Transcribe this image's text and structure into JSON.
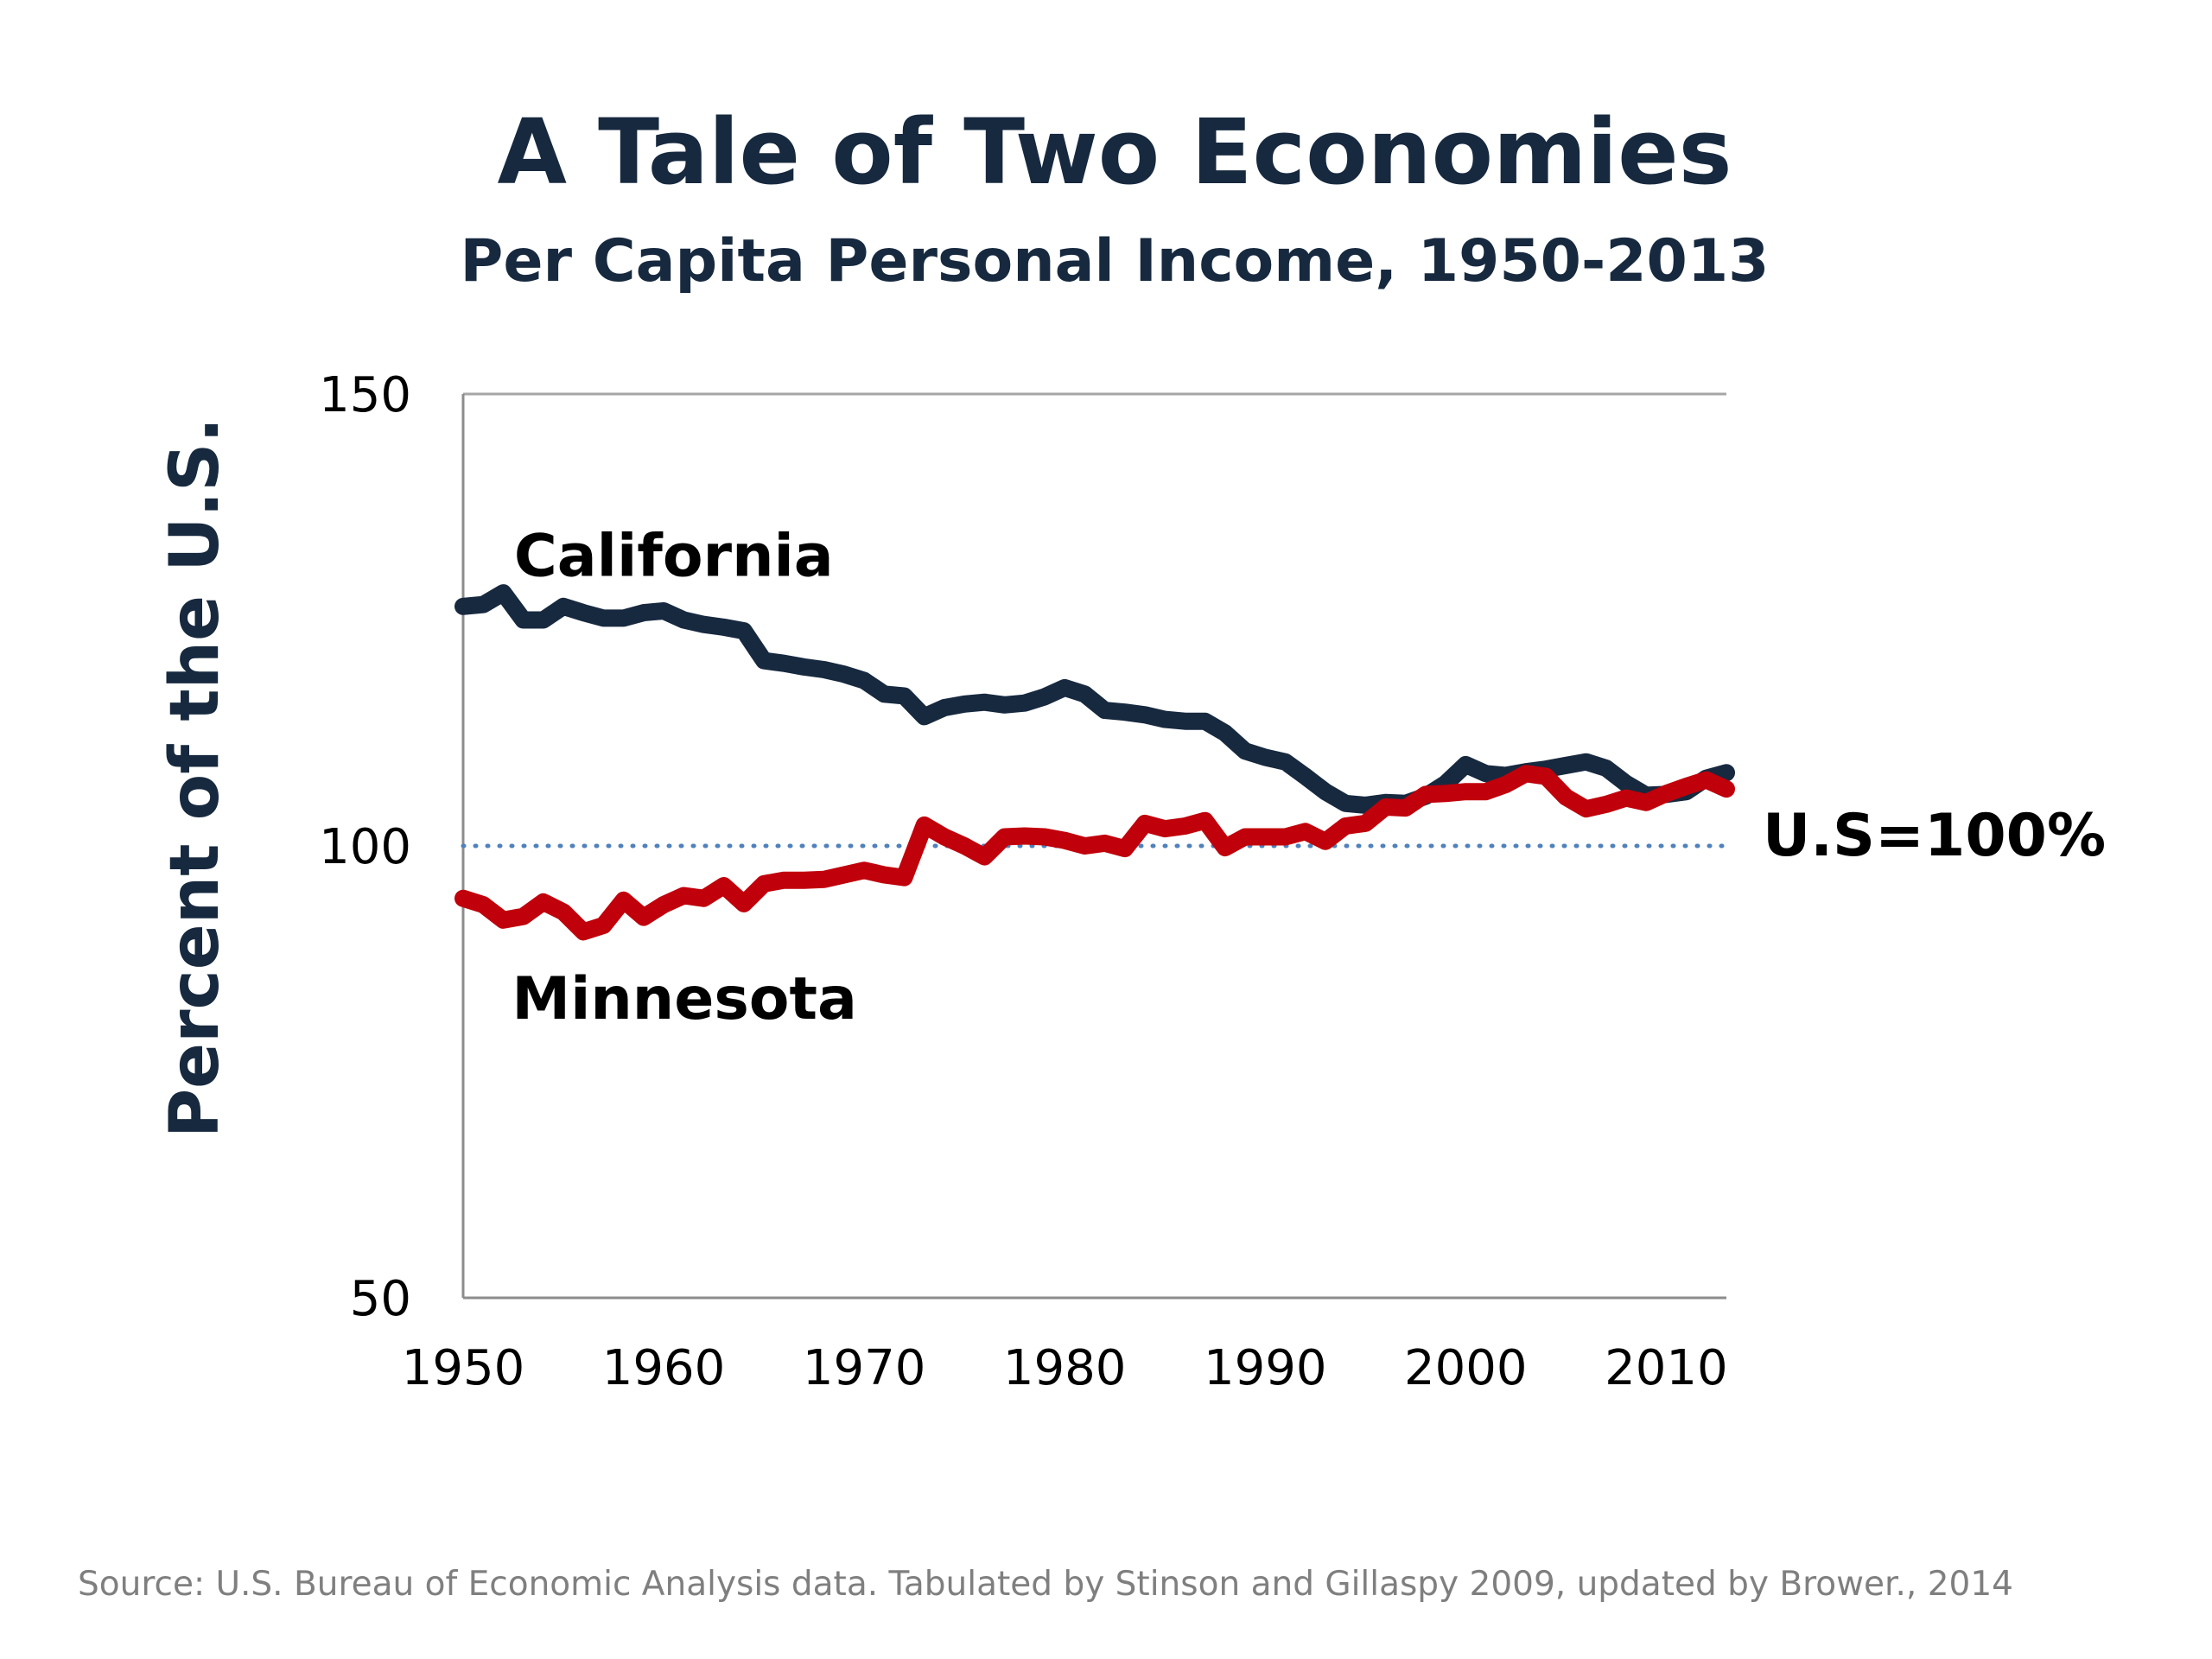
{
  "chart_data": {
    "type": "line",
    "title": "A Tale of Two Economies",
    "subtitle": "Per Capita Personal Income, 1950-2013",
    "ylabel": "Percent of the U.S.",
    "xlabel": "",
    "ylim": [
      50,
      150
    ],
    "xlim": [
      1950,
      2013
    ],
    "y_ticks": [
      "150",
      "100",
      "50"
    ],
    "y_tick_values": [
      150,
      100,
      50
    ],
    "x_ticks": [
      "1950",
      "1960",
      "1970",
      "1980",
      "1990",
      "2000",
      "2010"
    ],
    "x_tick_values": [
      1950,
      1960,
      1970,
      1980,
      1990,
      2000,
      2010
    ],
    "grid": {
      "horizontal_at": [
        150
      ],
      "style": "solid-light"
    },
    "reference_line": {
      "value": 100,
      "label": "U.S=100%",
      "style": "dotted",
      "color": "#4f81bd"
    },
    "x": [
      1950,
      1951,
      1952,
      1953,
      1954,
      1955,
      1956,
      1957,
      1958,
      1959,
      1960,
      1961,
      1962,
      1963,
      1964,
      1965,
      1966,
      1967,
      1968,
      1969,
      1970,
      1971,
      1972,
      1973,
      1974,
      1975,
      1976,
      1977,
      1978,
      1979,
      1980,
      1981,
      1982,
      1983,
      1984,
      1985,
      1986,
      1987,
      1988,
      1989,
      1990,
      1991,
      1992,
      1993,
      1994,
      1995,
      1996,
      1997,
      1998,
      1999,
      2000,
      2001,
      2002,
      2003,
      2004,
      2005,
      2006,
      2007,
      2008,
      2009,
      2010,
      2011,
      2012,
      2013
    ],
    "series": [
      {
        "name": "California",
        "color": "#17293f",
        "values": [
          126.5,
          126.7,
          128,
          125,
          125,
          126.5,
          125.8,
          125.2,
          125.2,
          125.8,
          126,
          125,
          124.5,
          124.2,
          123.8,
          120.5,
          120.2,
          119.8,
          119.5,
          119,
          118.3,
          116.8,
          116.6,
          114.3,
          115.3,
          115.7,
          115.9,
          115.6,
          115.8,
          116.5,
          117.5,
          116.8,
          115,
          114.8,
          114.5,
          114,
          113.8,
          113.8,
          112.5,
          110.5,
          109.8,
          109.3,
          107.7,
          106,
          104.7,
          104.5,
          104.8,
          104.7,
          105.5,
          106.9,
          109,
          108,
          107.8,
          108.2,
          108.5,
          108.9,
          109.3,
          108.6,
          106.9,
          105.6,
          105.7,
          106,
          107.5,
          108.1
        ],
        "label_position": "upper-left"
      },
      {
        "name": "Minnesota",
        "color": "#c0000b",
        "values": [
          94.2,
          93.5,
          91.8,
          92.2,
          93.8,
          92.7,
          90.5,
          91.2,
          94,
          92.1,
          93.5,
          94.5,
          94.2,
          95.6,
          93.6,
          95.8,
          96.2,
          96.2,
          96.3,
          96.8,
          97.3,
          96.8,
          96.5,
          102.3,
          101,
          100,
          98.8,
          101,
          101.1,
          101,
          100.6,
          100,
          100.3,
          99.7,
          102.5,
          101.9,
          102.2,
          102.8,
          99.8,
          101,
          101,
          101,
          101.6,
          100.5,
          102.2,
          102.5,
          104.3,
          104.2,
          105.7,
          105.8,
          106,
          106,
          106.8,
          108,
          107.7,
          105.4,
          104.1,
          104.6,
          105.3,
          104.8,
          105.8,
          106.6,
          107.3,
          106.3
        ],
        "label_position": "lower-left"
      }
    ]
  },
  "source": "Source: U.S. Bureau of Economic Analysis data. Tabulated by Stinson and Gillaspy 2009, updated by Brower., 2014"
}
